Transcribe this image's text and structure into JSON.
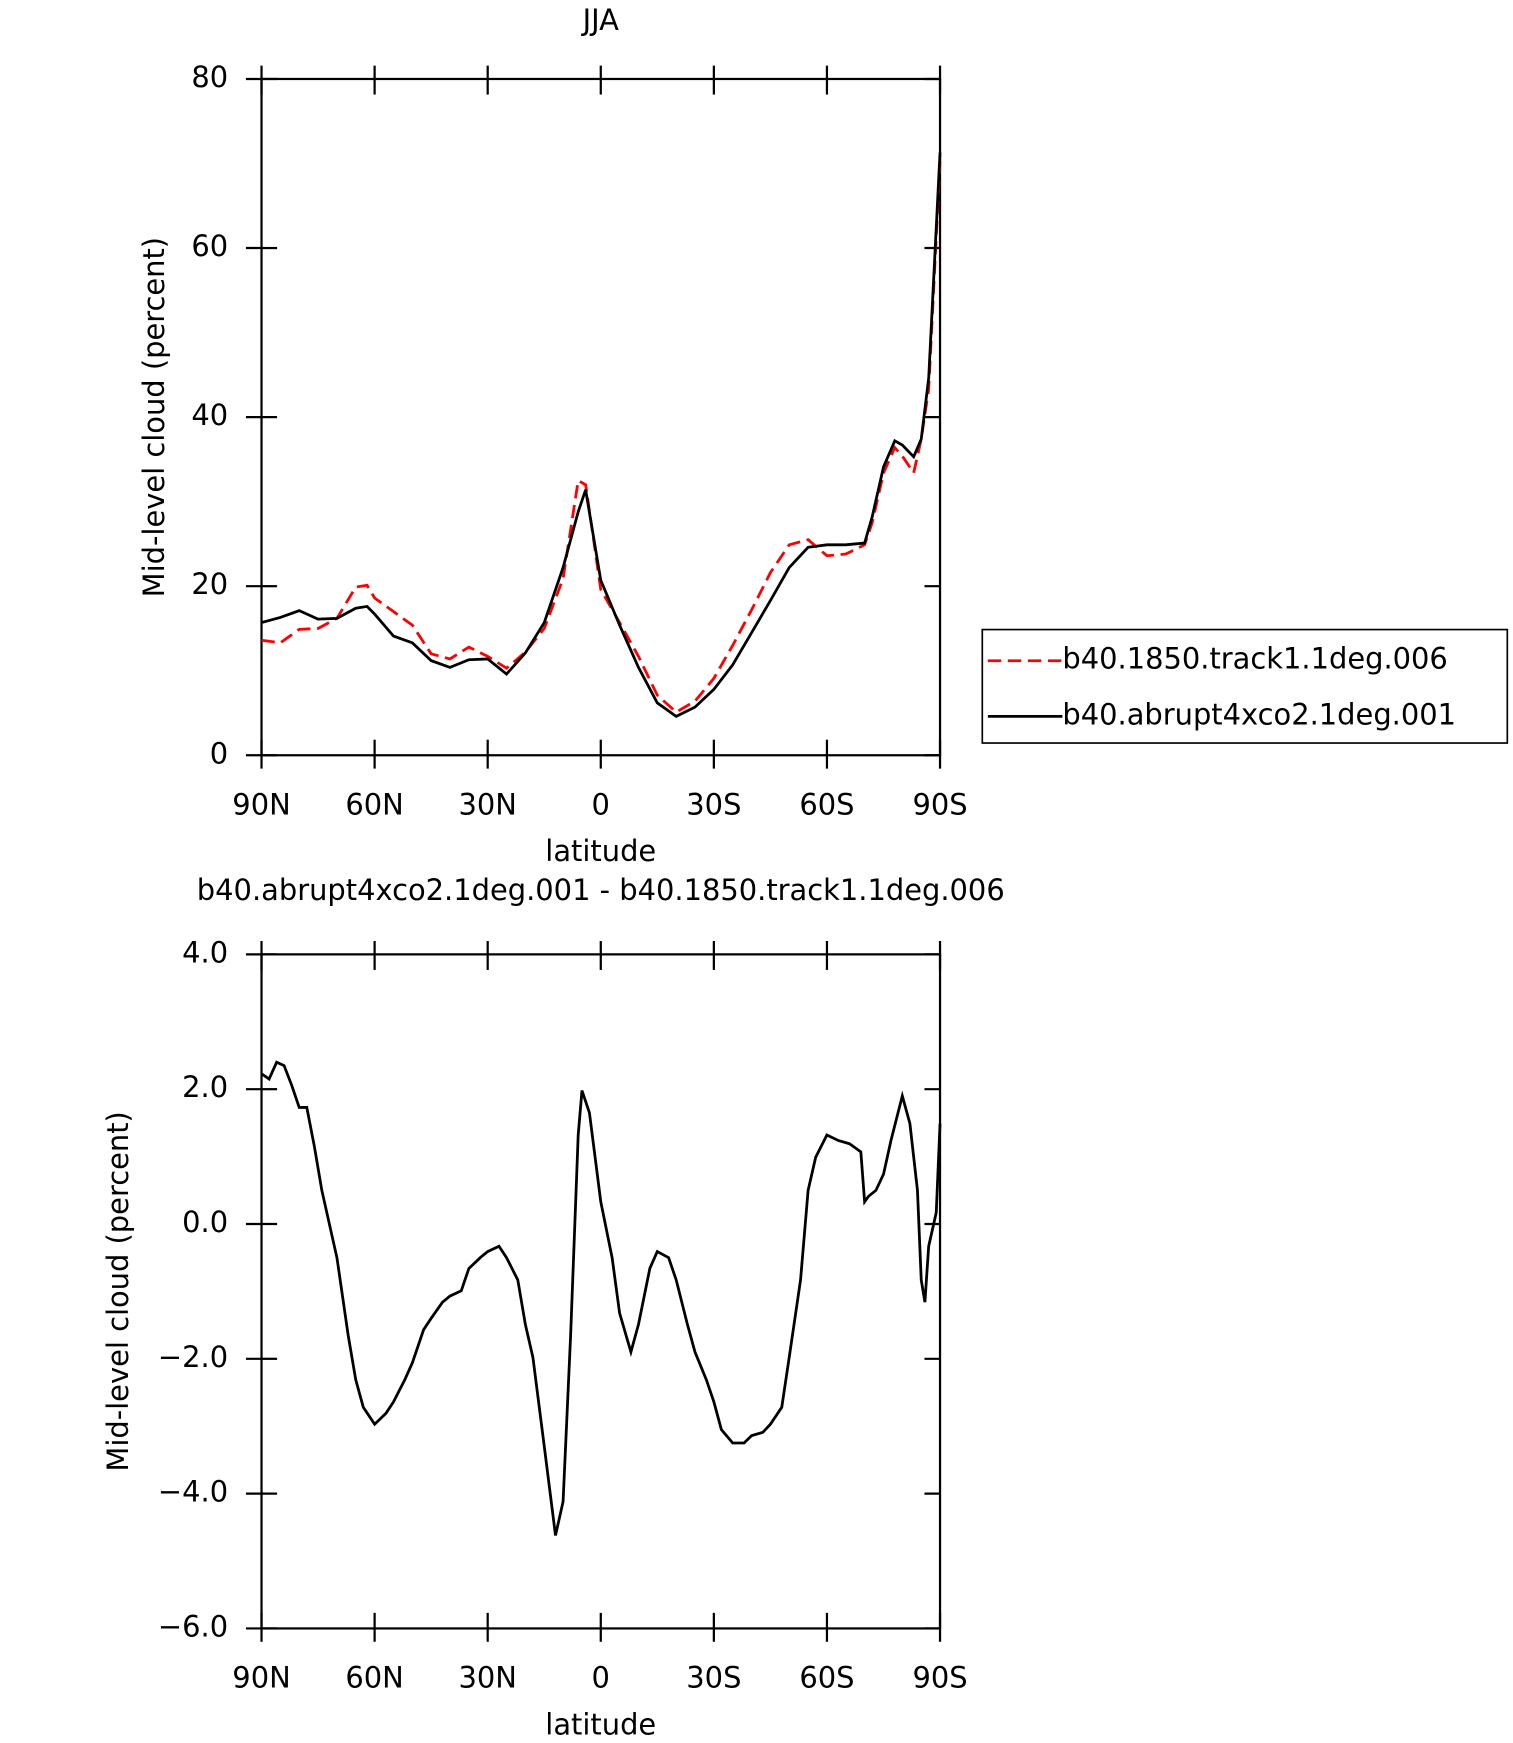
{
  "chart_data": [
    {
      "type": "line",
      "title": "JJA",
      "x_label": "latitude",
      "y_label": "Mid-level cloud (percent)",
      "x": [
        90,
        85,
        80,
        75,
        70,
        65,
        62,
        60,
        55,
        50,
        45,
        40,
        35,
        30,
        25,
        20,
        15,
        10,
        6,
        4,
        0,
        -5,
        -10,
        -15,
        -20,
        -25,
        -30,
        -35,
        -40,
        -45,
        -50,
        -55,
        -60,
        -65,
        -70,
        -72,
        -75,
        -78,
        -80,
        -83,
        -85,
        -87,
        -90
      ],
      "xlim": [
        90,
        -90
      ],
      "xticks": [
        {
          "value": 90,
          "label": "90N"
        },
        {
          "value": 60,
          "label": "60N"
        },
        {
          "value": 30,
          "label": "30N"
        },
        0,
        {
          "value": -30,
          "label": "30S"
        },
        {
          "value": -60,
          "label": "60S"
        },
        {
          "value": -90,
          "label": "90S"
        }
      ],
      "ylim": [
        0,
        80
      ],
      "yticks": [
        0,
        20,
        40,
        60,
        80
      ],
      "legend": "right",
      "series": [
        {
          "name": "b40.1850.track1.1deg.006",
          "color": "#ff0000",
          "line_style": "dashed",
          "values": [
            13.6,
            13.3,
            14.9,
            15.0,
            16.2,
            19.9,
            20.1,
            18.6,
            17.0,
            15.4,
            12.0,
            11.4,
            12.8,
            11.7,
            10.3,
            12.2,
            15.0,
            20.9,
            32.5,
            32.0,
            19.6,
            15.7,
            11.7,
            7.1,
            5.1,
            6.4,
            9.1,
            13.0,
            17.2,
            21.6,
            24.9,
            25.5,
            23.6,
            23.8,
            24.9,
            27.5,
            33.4,
            36.4,
            35.4,
            33.4,
            37.4,
            43.3,
            70.3
          ]
        },
        {
          "name": "b40.abrupt4xco2.1deg.001",
          "color": "#000000",
          "line_style": "solid",
          "values": [
            15.7,
            16.3,
            17.1,
            16.1,
            16.2,
            17.4,
            17.6,
            16.7,
            14.1,
            13.3,
            11.2,
            10.4,
            11.3,
            11.4,
            9.6,
            12.1,
            15.7,
            22.2,
            28.8,
            31.4,
            20.7,
            15.4,
            10.4,
            6.2,
            4.6,
            5.7,
            7.8,
            10.7,
            14.5,
            18.3,
            22.2,
            24.6,
            24.9,
            24.9,
            25.1,
            28.2,
            34.1,
            37.2,
            36.7,
            35.3,
            37.4,
            44.6,
            71.3
          ]
        }
      ]
    },
    {
      "type": "line",
      "title": "b40.abrupt4xco2.1deg.001 - b40.1850.track1.1deg.006",
      "x_label": "latitude",
      "y_label": "Mid-level cloud (percent)",
      "x": [
        90,
        88,
        86,
        84,
        82,
        80,
        78,
        76,
        74,
        72,
        70,
        67,
        65,
        63,
        60,
        57,
        55,
        52,
        50,
        47,
        45,
        42,
        40,
        37,
        35,
        32,
        30,
        27,
        25,
        22,
        20,
        18,
        15,
        12,
        10,
        8,
        6,
        5,
        3,
        0,
        -3,
        -5,
        -8,
        -10,
        -13,
        -15,
        -18,
        -20,
        -23,
        -25,
        -28,
        -30,
        -32,
        -35,
        -38,
        -40,
        -43,
        -45,
        -48,
        -50,
        -53,
        -55,
        -57,
        -60,
        -63,
        -66,
        -69,
        -70,
        -71,
        -73,
        -75,
        -77,
        -80,
        -82,
        -84,
        -85,
        -86,
        -87,
        -89,
        -90
      ],
      "xlim": [
        90,
        -90
      ],
      "xticks": [
        {
          "value": 90,
          "label": "90N"
        },
        {
          "value": 60,
          "label": "60N"
        },
        {
          "value": 30,
          "label": "30N"
        },
        0,
        {
          "value": -30,
          "label": "30S"
        },
        {
          "value": -60,
          "label": "60S"
        },
        {
          "value": -90,
          "label": "90S"
        }
      ],
      "ylim": [
        -6,
        4
      ],
      "yticks": [
        {
          "value": -6,
          "label": "−6.0"
        },
        {
          "value": -4,
          "label": "−4.0"
        },
        {
          "value": -2,
          "label": "−2.0"
        },
        {
          "value": 0,
          "label": "0.0"
        },
        {
          "value": 2,
          "label": "2.0"
        },
        {
          "value": 4,
          "label": "4.0"
        }
      ],
      "series": [
        {
          "color": "#000000",
          "line_style": "solid",
          "values": [
            2.23,
            2.15,
            2.4,
            2.35,
            2.06,
            1.73,
            1.73,
            1.16,
            0.5,
            0.0,
            -0.5,
            -1.65,
            -2.31,
            -2.72,
            -2.97,
            -2.81,
            -2.64,
            -2.31,
            -2.06,
            -1.57,
            -1.4,
            -1.16,
            -1.07,
            -0.99,
            -0.66,
            -0.5,
            -0.41,
            -0.33,
            -0.5,
            -0.83,
            -1.49,
            -1.98,
            -3.3,
            -4.62,
            -4.12,
            -1.65,
            1.32,
            1.98,
            1.65,
            0.33,
            -0.5,
            -1.32,
            -1.9,
            -1.49,
            -0.66,
            -0.41,
            -0.5,
            -0.83,
            -1.49,
            -1.9,
            -2.31,
            -2.64,
            -3.05,
            -3.25,
            -3.25,
            -3.14,
            -3.09,
            -2.97,
            -2.72,
            -1.98,
            -0.83,
            0.5,
            0.99,
            1.32,
            1.24,
            1.19,
            1.07,
            0.33,
            0.41,
            0.5,
            0.74,
            1.24,
            1.9,
            1.49,
            0.5,
            -0.83,
            -1.16,
            -0.33,
            0.17,
            1.49
          ]
        }
      ]
    }
  ]
}
